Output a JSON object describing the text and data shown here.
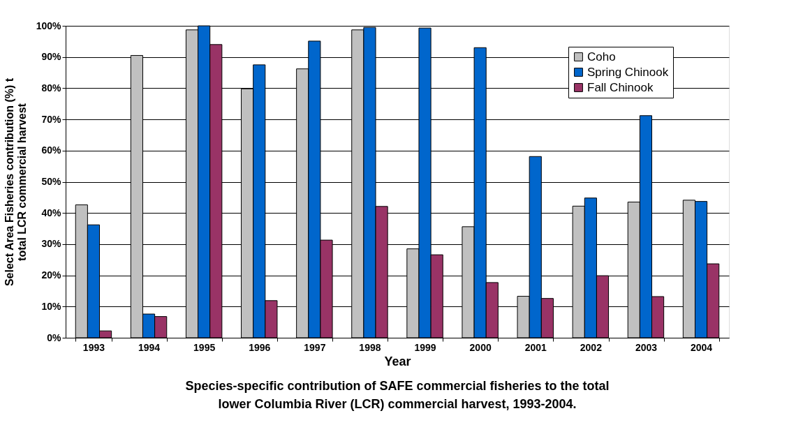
{
  "chart_data": {
    "type": "bar",
    "xlabel": "Year",
    "ylabel": "Select Area Fisheries contribution (%) t\ntotal LCR commercial harvest",
    "categories": [
      "1993",
      "1994",
      "1995",
      "1996",
      "1997",
      "1998",
      "1999",
      "2000",
      "2001",
      "2002",
      "2003",
      "2004"
    ],
    "series": [
      {
        "name": "Coho",
        "color": "#c0c0c0",
        "values": [
          42.6,
          90.5,
          98.7,
          79.8,
          86.2,
          98.7,
          28.5,
          35.6,
          13.3,
          42.2,
          43.5,
          44.1
        ]
      },
      {
        "name": "Spring Chinook",
        "color": "#0066cc",
        "values": [
          36.2,
          7.6,
          100,
          87.5,
          95.1,
          99.5,
          99.3,
          93.0,
          58.1,
          44.8,
          71.2,
          43.7
        ]
      },
      {
        "name": "Fall Chinook",
        "color": "#993366",
        "values": [
          2.2,
          6.8,
          94.0,
          11.9,
          31.3,
          42.1,
          26.6,
          17.7,
          12.6,
          19.9,
          13.2,
          23.7
        ]
      }
    ],
    "ylim": [
      0,
      100
    ],
    "yticks": [
      {
        "value": 0,
        "label": "0%"
      },
      {
        "value": 10,
        "label": "10%"
      },
      {
        "value": 20,
        "label": "20%"
      },
      {
        "value": 30,
        "label": "30%"
      },
      {
        "value": 40,
        "label": "40%"
      },
      {
        "value": 50,
        "label": "50%"
      },
      {
        "value": 60,
        "label": "60%"
      },
      {
        "value": 70,
        "label": "70%"
      },
      {
        "value": 80,
        "label": "80%"
      },
      {
        "value": 90,
        "label": "90%"
      },
      {
        "value": 100,
        "label": "100%"
      }
    ],
    "grid": "y",
    "legend": "top right",
    "annotations": [
      "Species-specific contribution of SAFE commercial fisheries to the total\nlower Columbia River (LCR) commercial harvest, 1993-2004."
    ]
  }
}
